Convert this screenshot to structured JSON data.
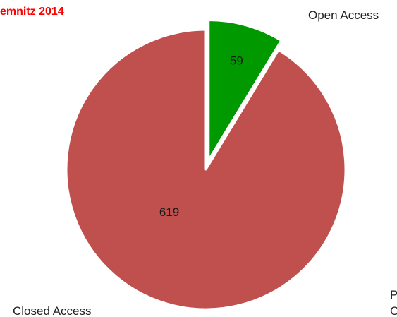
{
  "chart_data": {
    "type": "pie",
    "title": "emnitz 2014",
    "categories": [
      "Open Access",
      "Closed Access"
    ],
    "values": [
      59,
      619
    ],
    "value_labels": [
      "59",
      "619"
    ],
    "colors": [
      "#009900",
      "#c0504d"
    ],
    "title_color": "#ff0000",
    "legend": "none",
    "exploded": [
      "Open Access"
    ],
    "cropped_note": [
      "P",
      "C"
    ]
  }
}
